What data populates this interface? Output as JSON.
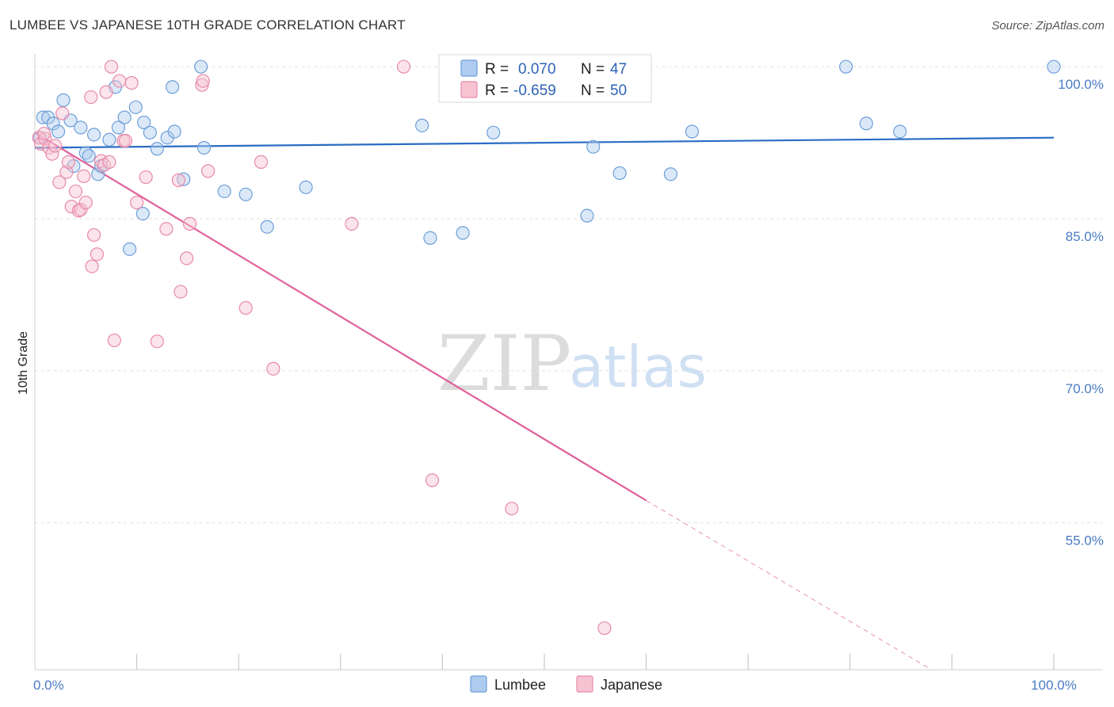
{
  "header": {
    "title": "LUMBEE VS JAPANESE 10TH GRADE CORRELATION CHART",
    "source": "Source: ZipAtlas.com"
  },
  "watermark": {
    "zip": "ZIP",
    "atlas": "atlas"
  },
  "legend": {
    "rows": [
      {
        "r_label": "R =",
        "r_value": "0.070",
        "n_label": "N =",
        "n_value": "47",
        "color": "#aecbf0",
        "stroke": "#6e9fd8"
      },
      {
        "r_label": "R =",
        "r_value": "-0.659",
        "n_label": "N =",
        "n_value": "50",
        "color": "#f7c3d3",
        "stroke": "#e88aa8"
      }
    ]
  },
  "bottom_legend": [
    {
      "label": "Lumbee",
      "color": "#aecbf0",
      "stroke": "#6e9fd8"
    },
    {
      "label": "Japanese",
      "color": "#f7c3d3",
      "stroke": "#e88aa8"
    }
  ],
  "chart_data": {
    "type": "scatter",
    "title": "LUMBEE VS JAPANESE 10TH GRADE CORRELATION CHART",
    "xlabel": "",
    "ylabel": "10th Grade",
    "xlim": [
      0,
      100
    ],
    "ylim": [
      40.5,
      101.5
    ],
    "x_tick_labels": [
      {
        "value": 0,
        "label": "0.0%"
      },
      {
        "value": 100,
        "label": "100.0%"
      }
    ],
    "y_tick_labels": [
      {
        "value": 100,
        "label": "100.0%"
      },
      {
        "value": 85,
        "label": "85.0%"
      },
      {
        "value": 70,
        "label": "70.0%"
      },
      {
        "value": 55,
        "label": "55.0%"
      }
    ],
    "grid": true,
    "legend_placement": "top-center",
    "series": [
      {
        "name": "Lumbee",
        "color": "#6e9fd8",
        "fill": "#aecbf0",
        "trend": {
          "x": [
            0,
            100
          ],
          "y": [
            92.0,
            93.0
          ],
          "color": "#2a6cc4"
        },
        "points": [
          [
            0.8,
            95.0
          ],
          [
            1.3,
            95.0
          ],
          [
            1.8,
            94.4
          ],
          [
            2.3,
            93.6
          ],
          [
            2.8,
            96.7
          ],
          [
            3.5,
            94.7
          ],
          [
            3.8,
            90.2
          ],
          [
            4.5,
            94.0
          ],
          [
            5.0,
            91.5
          ],
          [
            5.3,
            91.2
          ],
          [
            5.8,
            93.3
          ],
          [
            6.2,
            89.4
          ],
          [
            6.5,
            90.2
          ],
          [
            7.3,
            92.8
          ],
          [
            7.9,
            98.0
          ],
          [
            8.2,
            94.0
          ],
          [
            8.8,
            95.0
          ],
          [
            9.3,
            82.0
          ],
          [
            9.9,
            96.0
          ],
          [
            10.6,
            85.5
          ],
          [
            10.7,
            94.5
          ],
          [
            11.3,
            93.5
          ],
          [
            12.0,
            91.9
          ],
          [
            13.0,
            93.0
          ],
          [
            13.5,
            98.0
          ],
          [
            13.7,
            93.6
          ],
          [
            14.6,
            88.9
          ],
          [
            16.3,
            100.0
          ],
          [
            16.6,
            92.0
          ],
          [
            18.6,
            87.7
          ],
          [
            20.7,
            87.4
          ],
          [
            22.8,
            84.2
          ],
          [
            26.6,
            88.1
          ],
          [
            38.0,
            94.2
          ],
          [
            38.8,
            83.1
          ],
          [
            42.0,
            83.6
          ],
          [
            45.0,
            93.5
          ],
          [
            54.2,
            85.3
          ],
          [
            54.8,
            92.1
          ],
          [
            57.4,
            89.5
          ],
          [
            62.4,
            89.4
          ],
          [
            64.5,
            93.6
          ],
          [
            79.6,
            100.0
          ],
          [
            81.6,
            94.4
          ],
          [
            84.9,
            93.6
          ],
          [
            100.0,
            100.0
          ],
          [
            0.5,
            93.0
          ]
        ]
      },
      {
        "name": "Japanese",
        "color": "#e88aa8",
        "fill": "#f7c3d3",
        "trend": {
          "x": [
            0,
            60
          ],
          "y": [
            93.5,
            57.2
          ],
          "dash_x": [
            60,
            88
          ],
          "dash_y": [
            57.2,
            40.5
          ],
          "color": "#e0609a"
        },
        "points": [
          [
            0.4,
            93.0
          ],
          [
            0.6,
            92.4
          ],
          [
            1.0,
            92.9
          ],
          [
            1.4,
            92.0
          ],
          [
            1.7,
            91.4
          ],
          [
            2.0,
            92.2
          ],
          [
            2.4,
            88.6
          ],
          [
            2.7,
            95.4
          ],
          [
            3.1,
            89.6
          ],
          [
            3.3,
            90.6
          ],
          [
            3.6,
            86.2
          ],
          [
            4.0,
            87.7
          ],
          [
            4.3,
            85.8
          ],
          [
            4.5,
            85.9
          ],
          [
            4.8,
            89.2
          ],
          [
            5.0,
            86.6
          ],
          [
            5.5,
            97.0
          ],
          [
            5.6,
            80.3
          ],
          [
            5.8,
            83.4
          ],
          [
            6.1,
            81.5
          ],
          [
            6.5,
            90.7
          ],
          [
            6.8,
            90.3
          ],
          [
            7.0,
            97.5
          ],
          [
            7.3,
            90.6
          ],
          [
            7.5,
            100.0
          ],
          [
            7.8,
            73.0
          ],
          [
            8.3,
            98.6
          ],
          [
            8.7,
            92.7
          ],
          [
            8.9,
            92.7
          ],
          [
            9.5,
            98.4
          ],
          [
            10.0,
            86.6
          ],
          [
            10.9,
            89.1
          ],
          [
            12.0,
            72.9
          ],
          [
            12.9,
            84.0
          ],
          [
            14.1,
            88.8
          ],
          [
            14.3,
            77.8
          ],
          [
            14.9,
            81.1
          ],
          [
            15.2,
            84.5
          ],
          [
            16.4,
            98.2
          ],
          [
            16.5,
            98.6
          ],
          [
            17.0,
            89.7
          ],
          [
            20.7,
            76.2
          ],
          [
            22.2,
            90.6
          ],
          [
            23.4,
            70.2
          ],
          [
            31.1,
            84.5
          ],
          [
            36.2,
            100.0
          ],
          [
            39.0,
            59.2
          ],
          [
            46.8,
            56.4
          ],
          [
            55.9,
            44.6
          ],
          [
            0.9,
            93.4
          ]
        ]
      }
    ]
  }
}
